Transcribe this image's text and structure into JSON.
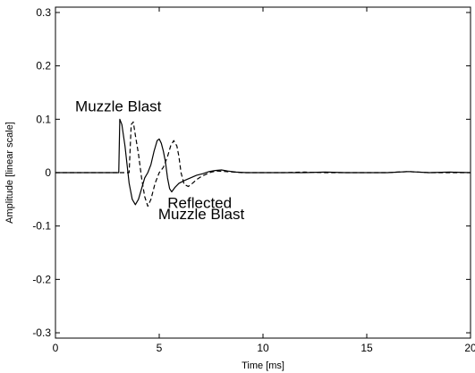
{
  "chart_data": {
    "type": "line",
    "title": "",
    "xlabel": "Time [ms]",
    "ylabel": "Amplitude [linear scale]",
    "xlim": [
      0,
      20
    ],
    "ylim": [
      -0.31,
      0.31
    ],
    "xticks": [
      0,
      5,
      10,
      15,
      20
    ],
    "xtick_labels": [
      "0",
      "5",
      "10",
      "15",
      "20"
    ],
    "yticks": [
      0.3,
      0.2,
      0.1,
      0,
      -0.1,
      -0.2,
      -0.3
    ],
    "ytick_labels": [
      "0.3",
      "0.2",
      "0.1",
      "0",
      "-0.1",
      "-0.2",
      "-0.3"
    ],
    "grid": false,
    "box": true,
    "annotations": [
      {
        "text": "Muzzle Blast",
        "x": 0.95,
        "y": 0.115
      },
      {
        "text": "Reflected",
        "x": 5.4,
        "y": -0.066
      },
      {
        "text": "Muzzle Blast",
        "x": 4.95,
        "y": -0.087
      }
    ],
    "series": [
      {
        "style": "solid",
        "color": "#000000",
        "x": [
          0,
          1,
          2,
          2.8,
          3.05,
          3.1,
          3.2,
          3.35,
          3.55,
          3.7,
          3.85,
          4.0,
          4.15,
          4.3,
          4.45,
          4.6,
          4.75,
          4.9,
          5.0,
          5.1,
          5.2,
          5.3,
          5.4,
          5.5,
          5.6,
          5.75,
          5.95,
          6.2,
          6.5,
          6.8,
          7.1,
          7.4,
          7.7,
          8.0,
          8.3,
          8.7,
          9.2,
          10,
          11,
          12,
          13,
          14,
          15,
          16,
          17,
          18,
          19,
          20
        ],
        "y": [
          0,
          0,
          0,
          0,
          0,
          0.1,
          0.09,
          0.05,
          -0.02,
          -0.05,
          -0.06,
          -0.05,
          -0.03,
          -0.01,
          0.0,
          0.015,
          0.04,
          0.06,
          0.063,
          0.055,
          0.04,
          0.02,
          -0.01,
          -0.03,
          -0.036,
          -0.028,
          -0.02,
          -0.015,
          -0.01,
          -0.005,
          -0.002,
          0.002,
          0.004,
          0.005,
          0.003,
          0.001,
          0,
          0,
          0,
          0,
          0.001,
          0,
          0,
          0,
          0.002,
          0,
          0.001,
          0
        ]
      },
      {
        "style": "dashed",
        "color": "#000000",
        "x": [
          0,
          1,
          2,
          3,
          3.55,
          3.65,
          3.75,
          3.85,
          4.0,
          4.15,
          4.3,
          4.45,
          4.6,
          4.8,
          5.0,
          5.2,
          5.4,
          5.55,
          5.7,
          5.85,
          5.95,
          6.05,
          6.2,
          6.4,
          6.6,
          6.8,
          7.0,
          7.2,
          7.5,
          7.8,
          8.2,
          8.6,
          9.0,
          10,
          11,
          12,
          13,
          14,
          15,
          16,
          17,
          18,
          19,
          20
        ],
        "y": [
          0,
          0,
          0,
          0,
          0,
          0.09,
          0.095,
          0.07,
          0.035,
          -0.01,
          -0.045,
          -0.063,
          -0.05,
          -0.02,
          0.0,
          0.01,
          0.03,
          0.05,
          0.06,
          0.05,
          0.03,
          0.0,
          -0.022,
          -0.026,
          -0.02,
          -0.013,
          -0.008,
          -0.004,
          0.001,
          0.003,
          0.002,
          0.001,
          0,
          0,
          0,
          0.001,
          0,
          0,
          0,
          0,
          0.002,
          0,
          0,
          0
        ]
      }
    ]
  }
}
